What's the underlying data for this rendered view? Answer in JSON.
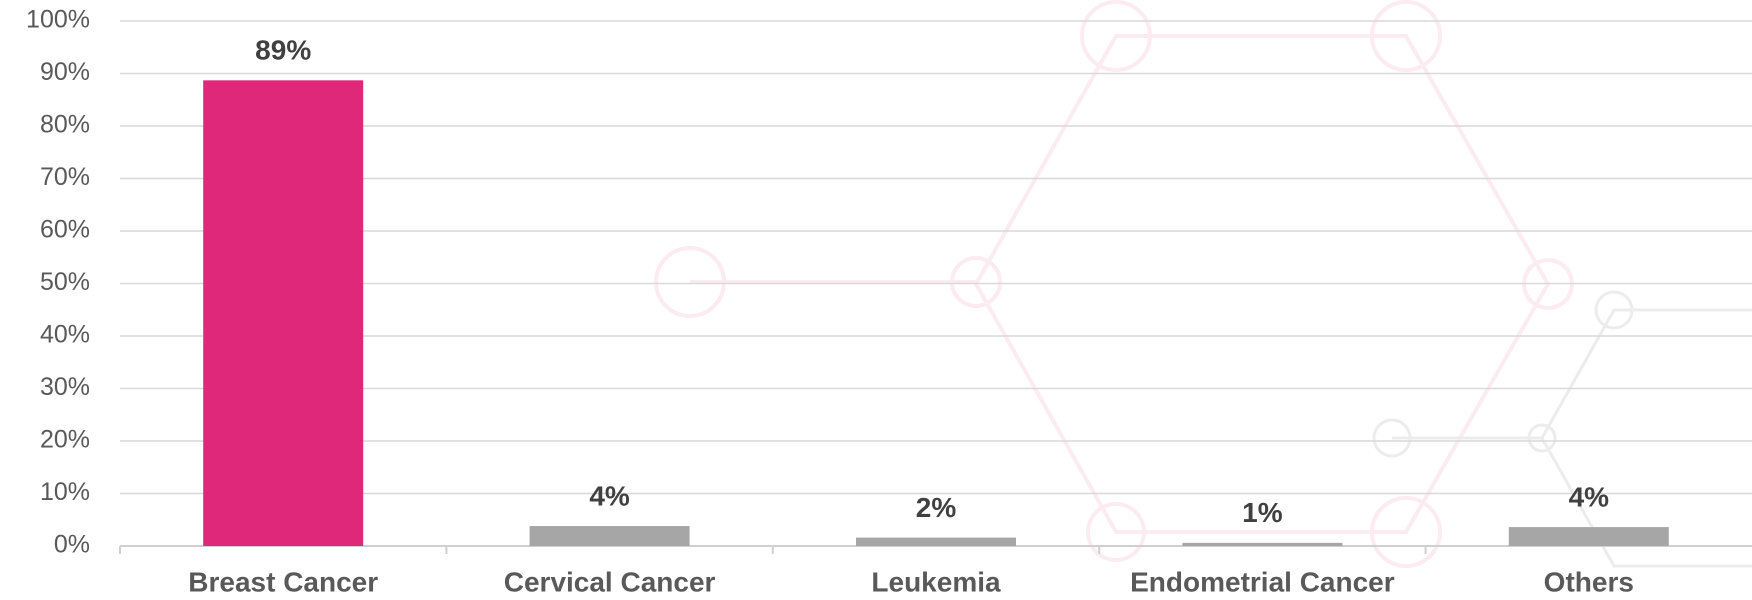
{
  "chart_data": {
    "type": "bar",
    "categories": [
      "Breast Cancer",
      "Cervical Cancer",
      "Leukemia",
      "Endometrial Cancer",
      "Others"
    ],
    "values": [
      88.7,
      3.8,
      1.6,
      0.6,
      3.6
    ],
    "value_labels": [
      "89%",
      "4%",
      "2%",
      "1%",
      "4%"
    ],
    "colors": [
      "#e0287a",
      "#a6a6a6",
      "#a6a6a6",
      "#a6a6a6",
      "#a6a6a6"
    ],
    "ylim": [
      0,
      100
    ],
    "yticks": [
      {
        "value": 0,
        "label": "0%"
      },
      {
        "value": 10,
        "label": "10%"
      },
      {
        "value": 20,
        "label": "20%"
      },
      {
        "value": 30,
        "label": "30%"
      },
      {
        "value": 40,
        "label": "40%"
      },
      {
        "value": 50,
        "label": "50%"
      },
      {
        "value": 60,
        "label": "60%"
      },
      {
        "value": 70,
        "label": "70%"
      },
      {
        "value": 80,
        "label": "80%"
      },
      {
        "value": 90,
        "label": "90%"
      },
      {
        "value": 100,
        "label": "100%"
      }
    ],
    "grid": true
  }
}
